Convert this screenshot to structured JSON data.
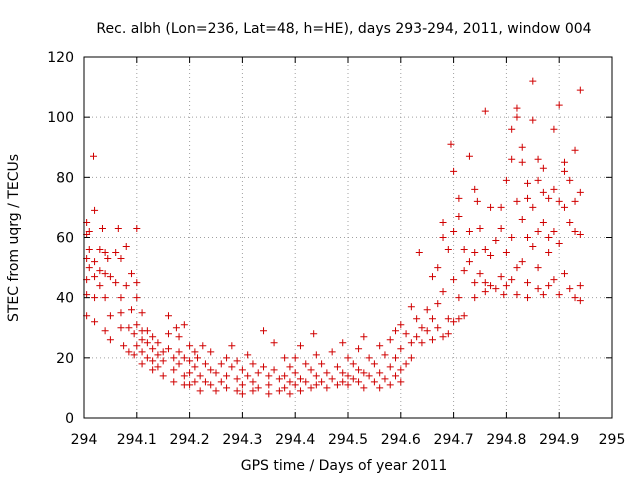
{
  "chart_data": {
    "type": "scatter",
    "title": "Rec. albh (Lon=236, Lat=48, h=HE), days 293-294, 2011, window 004",
    "xlabel": "GPS time / Days of year 2011",
    "ylabel": "STEC from uqrg / TECUs",
    "xlim": [
      294,
      295
    ],
    "ylim": [
      0,
      120
    ],
    "xticks": [
      294,
      294.1,
      294.2,
      294.3,
      294.4,
      294.5,
      294.6,
      294.7,
      294.8,
      294.9,
      295
    ],
    "xtick_labels": [
      "294",
      "294.1",
      "294.2",
      "294.3",
      "294.4",
      "294.5",
      "294.6",
      "294.7",
      "294.8",
      "294.9",
      "295"
    ],
    "yticks": [
      0,
      20,
      40,
      60,
      80,
      100,
      120
    ],
    "ytick_labels": [
      "0",
      "20",
      "40",
      "60",
      "80",
      "100",
      "120"
    ],
    "grid": true,
    "marker": "plus",
    "color": "#d00000",
    "points": [
      [
        294.005,
        65
      ],
      [
        294.005,
        61
      ],
      [
        294.005,
        53
      ],
      [
        294.005,
        46
      ],
      [
        294.005,
        41
      ],
      [
        294.005,
        34
      ],
      [
        294.01,
        62
      ],
      [
        294.01,
        56
      ],
      [
        294.01,
        50
      ],
      [
        294.018,
        87
      ],
      [
        294.02,
        69
      ],
      [
        294.02,
        52
      ],
      [
        294.02,
        47
      ],
      [
        294.02,
        40
      ],
      [
        294.02,
        32
      ],
      [
        294.03,
        56
      ],
      [
        294.03,
        49
      ],
      [
        294.03,
        44
      ],
      [
        294.035,
        63
      ],
      [
        294.04,
        55
      ],
      [
        294.04,
        48
      ],
      [
        294.04,
        40
      ],
      [
        294.04,
        29
      ],
      [
        294.045,
        53
      ],
      [
        294.05,
        47
      ],
      [
        294.05,
        34
      ],
      [
        294.05,
        26
      ],
      [
        294.06,
        55
      ],
      [
        294.06,
        45
      ],
      [
        294.065,
        63
      ],
      [
        294.07,
        53
      ],
      [
        294.07,
        40
      ],
      [
        294.07,
        35
      ],
      [
        294.07,
        30
      ],
      [
        294.075,
        24
      ],
      [
        294.08,
        57
      ],
      [
        294.08,
        44
      ],
      [
        294.085,
        30
      ],
      [
        294.085,
        22
      ],
      [
        294.09,
        48
      ],
      [
        294.09,
        36
      ],
      [
        294.095,
        28
      ],
      [
        294.095,
        21
      ],
      [
        294.1,
        63
      ],
      [
        294.1,
        45
      ],
      [
        294.1,
        40
      ],
      [
        294.1,
        31
      ],
      [
        294.1,
        24
      ],
      [
        294.11,
        35
      ],
      [
        294.11,
        29
      ],
      [
        294.11,
        26
      ],
      [
        294.11,
        22
      ],
      [
        294.11,
        18
      ],
      [
        294.12,
        29
      ],
      [
        294.12,
        25
      ],
      [
        294.12,
        20
      ],
      [
        294.13,
        27
      ],
      [
        294.13,
        23
      ],
      [
        294.13,
        19
      ],
      [
        294.13,
        16
      ],
      [
        294.14,
        25
      ],
      [
        294.14,
        21
      ],
      [
        294.14,
        17
      ],
      [
        294.15,
        22
      ],
      [
        294.15,
        19
      ],
      [
        294.15,
        14
      ],
      [
        294.16,
        34
      ],
      [
        294.16,
        28
      ],
      [
        294.16,
        23
      ],
      [
        294.17,
        20
      ],
      [
        294.17,
        16
      ],
      [
        294.17,
        12
      ],
      [
        294.175,
        30
      ],
      [
        294.18,
        27
      ],
      [
        294.18,
        22
      ],
      [
        294.18,
        18
      ],
      [
        294.19,
        31
      ],
      [
        294.19,
        20
      ],
      [
        294.19,
        14
      ],
      [
        294.19,
        11
      ],
      [
        294.2,
        24
      ],
      [
        294.2,
        19
      ],
      [
        294.2,
        15
      ],
      [
        294.2,
        11
      ],
      [
        294.21,
        22
      ],
      [
        294.21,
        17
      ],
      [
        294.21,
        12
      ],
      [
        294.215,
        20
      ],
      [
        294.22,
        14
      ],
      [
        294.22,
        9
      ],
      [
        294.225,
        24
      ],
      [
        294.23,
        18
      ],
      [
        294.23,
        12
      ],
      [
        294.24,
        22
      ],
      [
        294.24,
        16
      ],
      [
        294.24,
        11
      ],
      [
        294.25,
        15
      ],
      [
        294.25,
        9
      ],
      [
        294.26,
        18
      ],
      [
        294.26,
        12
      ],
      [
        294.27,
        20
      ],
      [
        294.27,
        14
      ],
      [
        294.27,
        10
      ],
      [
        294.28,
        24
      ],
      [
        294.28,
        17
      ],
      [
        294.29,
        19
      ],
      [
        294.29,
        13
      ],
      [
        294.29,
        9
      ],
      [
        294.3,
        16
      ],
      [
        294.3,
        11
      ],
      [
        294.3,
        8
      ],
      [
        294.31,
        21
      ],
      [
        294.31,
        14
      ],
      [
        294.32,
        18
      ],
      [
        294.32,
        12
      ],
      [
        294.32,
        9
      ],
      [
        294.33,
        15
      ],
      [
        294.33,
        10
      ],
      [
        294.34,
        29
      ],
      [
        294.34,
        17
      ],
      [
        294.35,
        14
      ],
      [
        294.35,
        11
      ],
      [
        294.35,
        8
      ],
      [
        294.36,
        25
      ],
      [
        294.36,
        16
      ],
      [
        294.37,
        13
      ],
      [
        294.37,
        9
      ],
      [
        294.38,
        20
      ],
      [
        294.38,
        14
      ],
      [
        294.38,
        10
      ],
      [
        294.39,
        17
      ],
      [
        294.39,
        12
      ],
      [
        294.39,
        8
      ],
      [
        294.4,
        20
      ],
      [
        294.4,
        15
      ],
      [
        294.4,
        11
      ],
      [
        294.41,
        24
      ],
      [
        294.41,
        13
      ],
      [
        294.41,
        9
      ],
      [
        294.42,
        18
      ],
      [
        294.42,
        12
      ],
      [
        294.43,
        16
      ],
      [
        294.43,
        10
      ],
      [
        294.435,
        28
      ],
      [
        294.44,
        21
      ],
      [
        294.44,
        14
      ],
      [
        294.44,
        11
      ],
      [
        294.45,
        18
      ],
      [
        294.45,
        12
      ],
      [
        294.46,
        15
      ],
      [
        294.46,
        10
      ],
      [
        294.47,
        22
      ],
      [
        294.47,
        13
      ],
      [
        294.48,
        17
      ],
      [
        294.48,
        11
      ],
      [
        294.49,
        25
      ],
      [
        294.49,
        15
      ],
      [
        294.49,
        12
      ],
      [
        294.5,
        20
      ],
      [
        294.5,
        14
      ],
      [
        294.5,
        11
      ],
      [
        294.51,
        18
      ],
      [
        294.51,
        13
      ],
      [
        294.52,
        23
      ],
      [
        294.52,
        16
      ],
      [
        294.52,
        12
      ],
      [
        294.53,
        27
      ],
      [
        294.53,
        15
      ],
      [
        294.53,
        10
      ],
      [
        294.54,
        20
      ],
      [
        294.54,
        14
      ],
      [
        294.55,
        18
      ],
      [
        294.55,
        12
      ],
      [
        294.56,
        24
      ],
      [
        294.56,
        15
      ],
      [
        294.56,
        10
      ],
      [
        294.57,
        21
      ],
      [
        294.57,
        13
      ],
      [
        294.58,
        26
      ],
      [
        294.58,
        17
      ],
      [
        294.58,
        11
      ],
      [
        294.59,
        29
      ],
      [
        294.59,
        20
      ],
      [
        294.59,
        14
      ],
      [
        294.6,
        31
      ],
      [
        294.6,
        23
      ],
      [
        294.6,
        16
      ],
      [
        294.6,
        12
      ],
      [
        294.61,
        28
      ],
      [
        294.61,
        18
      ],
      [
        294.62,
        37
      ],
      [
        294.62,
        25
      ],
      [
        294.62,
        20
      ],
      [
        294.63,
        33
      ],
      [
        294.63,
        27
      ],
      [
        294.635,
        55
      ],
      [
        294.64,
        30
      ],
      [
        294.64,
        25
      ],
      [
        294.65,
        36
      ],
      [
        294.65,
        29
      ],
      [
        294.66,
        47
      ],
      [
        294.66,
        33
      ],
      [
        294.66,
        26
      ],
      [
        294.67,
        50
      ],
      [
        294.67,
        38
      ],
      [
        294.67,
        30
      ],
      [
        294.68,
        65
      ],
      [
        294.68,
        60
      ],
      [
        294.68,
        42
      ],
      [
        294.68,
        27
      ],
      [
        294.69,
        56
      ],
      [
        294.69,
        33
      ],
      [
        294.69,
        28
      ],
      [
        294.695,
        91
      ],
      [
        294.7,
        82
      ],
      [
        294.7,
        62
      ],
      [
        294.7,
        46
      ],
      [
        294.7,
        32
      ],
      [
        294.71,
        73
      ],
      [
        294.71,
        67
      ],
      [
        294.71,
        40
      ],
      [
        294.71,
        33
      ],
      [
        294.72,
        56
      ],
      [
        294.72,
        49
      ],
      [
        294.72,
        34
      ],
      [
        294.73,
        87
      ],
      [
        294.73,
        62
      ],
      [
        294.73,
        52
      ],
      [
        294.74,
        76
      ],
      [
        294.74,
        55
      ],
      [
        294.74,
        45
      ],
      [
        294.74,
        40
      ],
      [
        294.745,
        72
      ],
      [
        294.75,
        63
      ],
      [
        294.75,
        48
      ],
      [
        294.76,
        102
      ],
      [
        294.76,
        56
      ],
      [
        294.76,
        45
      ],
      [
        294.76,
        42
      ],
      [
        294.77,
        70
      ],
      [
        294.77,
        54
      ],
      [
        294.77,
        44
      ],
      [
        294.78,
        59
      ],
      [
        294.78,
        43
      ],
      [
        294.79,
        70
      ],
      [
        294.79,
        63
      ],
      [
        294.79,
        47
      ],
      [
        294.795,
        41
      ],
      [
        294.8,
        79
      ],
      [
        294.8,
        55
      ],
      [
        294.8,
        44
      ],
      [
        294.81,
        96
      ],
      [
        294.81,
        86
      ],
      [
        294.81,
        60
      ],
      [
        294.81,
        46
      ],
      [
        294.82,
        103
      ],
      [
        294.82,
        100
      ],
      [
        294.82,
        72
      ],
      [
        294.82,
        50
      ],
      [
        294.82,
        41
      ],
      [
        294.83,
        90
      ],
      [
        294.83,
        85
      ],
      [
        294.83,
        66
      ],
      [
        294.83,
        52
      ],
      [
        294.84,
        78
      ],
      [
        294.84,
        73
      ],
      [
        294.84,
        60
      ],
      [
        294.84,
        45
      ],
      [
        294.84,
        40
      ],
      [
        294.85,
        112
      ],
      [
        294.85,
        99
      ],
      [
        294.85,
        70
      ],
      [
        294.85,
        57
      ],
      [
        294.86,
        86
      ],
      [
        294.86,
        79
      ],
      [
        294.86,
        62
      ],
      [
        294.86,
        50
      ],
      [
        294.86,
        43
      ],
      [
        294.87,
        83
      ],
      [
        294.87,
        75
      ],
      [
        294.87,
        65
      ],
      [
        294.87,
        41
      ],
      [
        294.88,
        73
      ],
      [
        294.88,
        60
      ],
      [
        294.88,
        55
      ],
      [
        294.88,
        44
      ],
      [
        294.89,
        96
      ],
      [
        294.89,
        76
      ],
      [
        294.89,
        62
      ],
      [
        294.89,
        46
      ],
      [
        294.9,
        104
      ],
      [
        294.9,
        72
      ],
      [
        294.9,
        58
      ],
      [
        294.9,
        41
      ],
      [
        294.91,
        85
      ],
      [
        294.91,
        82
      ],
      [
        294.91,
        70
      ],
      [
        294.91,
        48
      ],
      [
        294.92,
        79
      ],
      [
        294.92,
        65
      ],
      [
        294.92,
        43
      ],
      [
        294.93,
        89
      ],
      [
        294.93,
        72
      ],
      [
        294.93,
        62
      ],
      [
        294.93,
        40
      ],
      [
        294.94,
        109
      ],
      [
        294.94,
        75
      ],
      [
        294.94,
        61
      ],
      [
        294.94,
        44
      ],
      [
        294.94,
        39
      ]
    ]
  }
}
